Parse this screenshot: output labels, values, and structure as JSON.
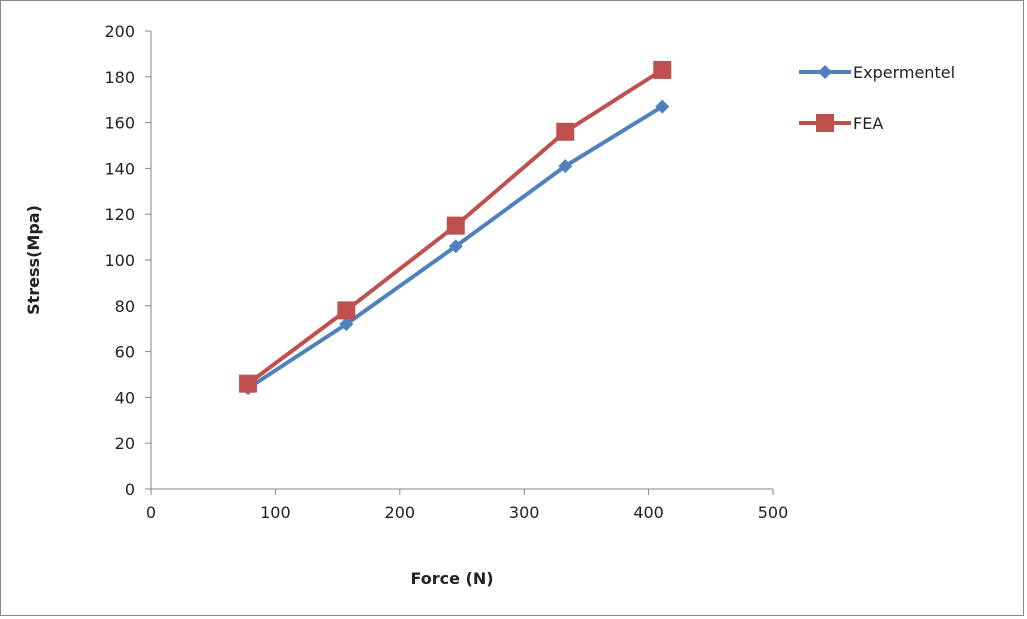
{
  "chart_data": {
    "type": "line",
    "title": "",
    "xlabel": "Force (N)",
    "ylabel": "Stress(Mpa)",
    "xlim": [
      0,
      500
    ],
    "ylim": [
      0,
      200
    ],
    "xticks": [
      0,
      100,
      200,
      300,
      400,
      500
    ],
    "yticks": [
      0,
      20,
      40,
      60,
      80,
      100,
      120,
      140,
      160,
      180,
      200
    ],
    "grid": false,
    "legend_position": "right",
    "series": [
      {
        "name": "Expermentel",
        "color": "#4F81BD",
        "marker": "diamond",
        "x": [
          78,
          157,
          245,
          333,
          411
        ],
        "y": [
          44,
          72,
          106,
          141,
          167
        ]
      },
      {
        "name": "FEA",
        "color": "#C0504D",
        "marker": "square",
        "x": [
          78,
          157,
          245,
          333,
          411
        ],
        "y": [
          46,
          78,
          115,
          156,
          183
        ]
      }
    ]
  }
}
